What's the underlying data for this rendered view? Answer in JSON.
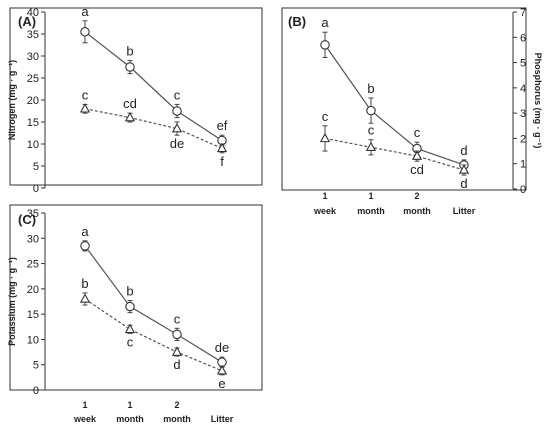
{
  "chart_data": [
    {
      "panel": "(A)",
      "type": "line",
      "ylabel": "Nitrogen (mg · g⁻¹)",
      "ylim": [
        0,
        40
      ],
      "yticks": [
        0,
        5,
        10,
        15,
        20,
        25,
        30,
        35,
        40
      ],
      "y_axis_side": "left",
      "grid": false,
      "categories": [
        "1 week",
        "1 month",
        "2 month",
        "Litter"
      ],
      "series": [
        {
          "style": "solid",
          "marker": "circle",
          "values": [
            35.5,
            27.5,
            17.5,
            10.8
          ],
          "errors": [
            2.5,
            1.5,
            1.5,
            1.2
          ],
          "letters": [
            "a",
            "b",
            "c",
            "ef"
          ]
        },
        {
          "style": "dashed",
          "marker": "triangle",
          "values": [
            18.0,
            16.0,
            13.5,
            9.0
          ],
          "errors": [
            1.0,
            1.0,
            1.5,
            1.0
          ],
          "letters": [
            "c",
            "cd",
            "de",
            "f"
          ]
        }
      ]
    },
    {
      "panel": "(B)",
      "type": "line",
      "ylabel": "Phosphorus (mg · g⁻¹)",
      "ylim": [
        0,
        7
      ],
      "yticks": [
        0,
        1,
        2,
        3,
        4,
        5,
        6,
        7
      ],
      "y_axis_side": "right",
      "grid": false,
      "categories": [
        "1 week",
        "1 month",
        "2 month",
        "Litter"
      ],
      "series": [
        {
          "style": "solid",
          "marker": "circle",
          "values": [
            5.7,
            3.1,
            1.6,
            0.95
          ],
          "errors": [
            0.5,
            0.5,
            0.25,
            0.2
          ],
          "letters": [
            "a",
            "b",
            "c",
            "d"
          ]
        },
        {
          "style": "dashed",
          "marker": "triangle",
          "values": [
            2.0,
            1.65,
            1.3,
            0.75
          ],
          "errors": [
            0.5,
            0.3,
            0.2,
            0.2
          ],
          "letters": [
            "c",
            "c",
            "cd",
            "d"
          ]
        }
      ]
    },
    {
      "panel": "(C)",
      "type": "line",
      "ylabel": "Potassium (mg · g⁻¹)",
      "ylim": [
        0,
        35
      ],
      "yticks": [
        0,
        5,
        10,
        15,
        20,
        25,
        30,
        35
      ],
      "y_axis_side": "left",
      "grid": false,
      "categories": [
        "1 week",
        "1 month",
        "2 month",
        "Litter"
      ],
      "series": [
        {
          "style": "solid",
          "marker": "circle",
          "values": [
            28.5,
            16.5,
            11.0,
            5.5
          ],
          "errors": [
            1.0,
            1.2,
            1.2,
            1.0
          ],
          "letters": [
            "a",
            "b",
            "c",
            "de"
          ]
        },
        {
          "style": "dashed",
          "marker": "triangle",
          "values": [
            18.0,
            12.0,
            7.5,
            3.8
          ],
          "errors": [
            1.2,
            0.8,
            0.8,
            0.8
          ],
          "letters": [
            "b",
            "c",
            "d",
            "e"
          ]
        }
      ]
    }
  ],
  "category_labels": [
    {
      "line1": "1",
      "line2": "week"
    },
    {
      "line1": "1",
      "line2": "month"
    },
    {
      "line1": "2",
      "line2": "month"
    },
    {
      "line1": "",
      "line2": "Litter"
    }
  ]
}
